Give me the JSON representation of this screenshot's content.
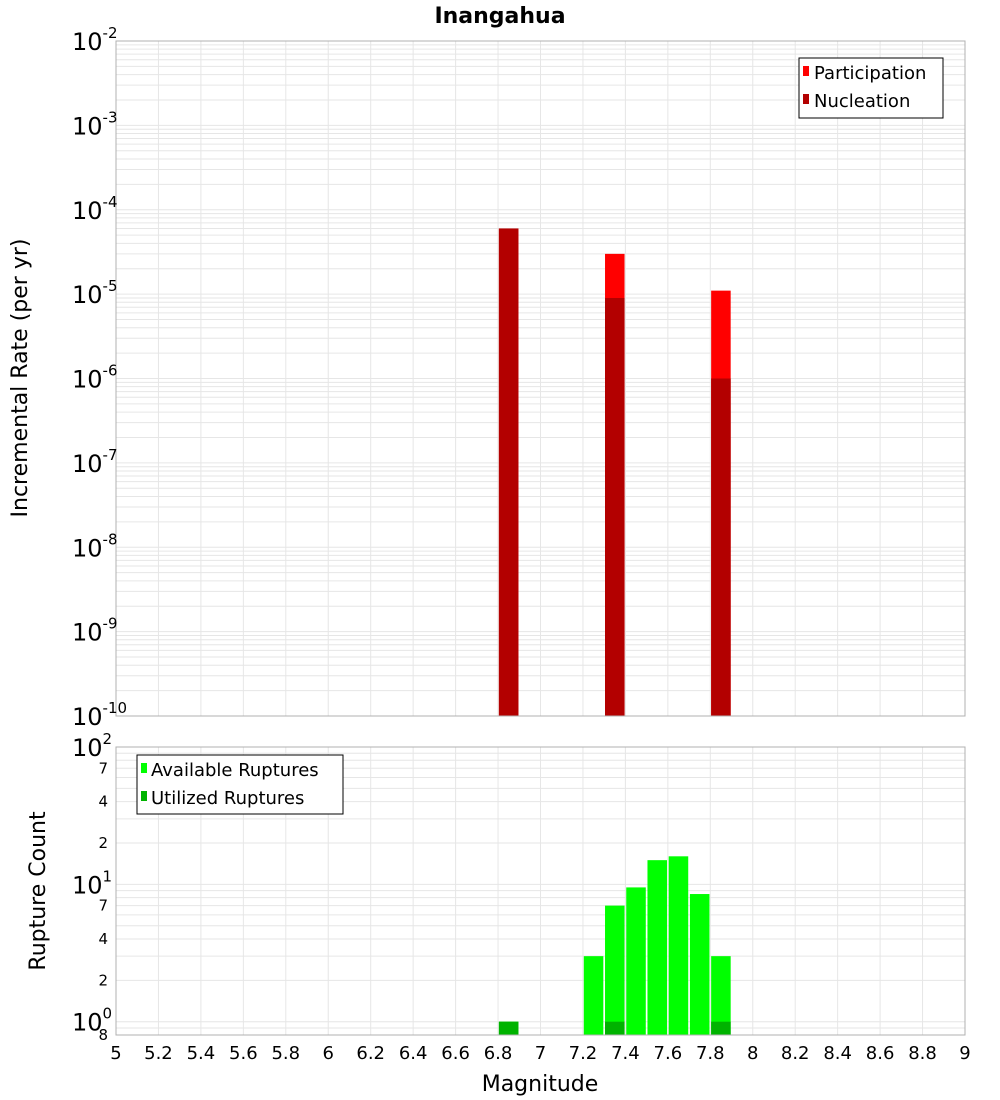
{
  "title": "Inangahua",
  "colors": {
    "participation": "#ff0000",
    "nucleation": "#b30000",
    "available": "#00ff00",
    "utilized": "#00b300",
    "grid": "#e6e6e6",
    "frame": "#b0b0b0"
  },
  "chart_data": [
    {
      "type": "bar",
      "ylabel": "Incremental Rate (per yr)",
      "yscale": "log",
      "ylim": [
        1e-10,
        0.01
      ],
      "ytick_labels": [
        {
          "base": "10",
          "exp": "-2"
        },
        {
          "base": "10",
          "exp": "-3"
        },
        {
          "base": "10",
          "exp": "-4"
        },
        {
          "base": "10",
          "exp": "-5"
        },
        {
          "base": "10",
          "exp": "-6"
        },
        {
          "base": "10",
          "exp": "-7"
        },
        {
          "base": "10",
          "exp": "-8"
        },
        {
          "base": "10",
          "exp": "-9"
        },
        {
          "base": "10",
          "exp": "-10"
        }
      ],
      "grid": true,
      "legend": "top-right",
      "series": [
        {
          "name": "Participation",
          "x": [
            6.85,
            7.35,
            7.85
          ],
          "values": [
            6e-05,
            3e-05,
            1.1e-05
          ]
        },
        {
          "name": "Nucleation",
          "x": [
            6.85,
            7.35,
            7.85
          ],
          "values": [
            6e-05,
            9e-06,
            1e-06
          ]
        }
      ]
    },
    {
      "type": "bar",
      "ylabel": "Rupture Count",
      "xlabel": "Magnitude",
      "yscale": "log",
      "ylim": [
        0.8,
        100
      ],
      "ytick_labels": [
        {
          "base": "10",
          "exp": "2"
        },
        {
          "minor": "7"
        },
        {
          "minor": "4"
        },
        {
          "minor": "2"
        },
        {
          "base": "10",
          "exp": "1"
        },
        {
          "minor": "7"
        },
        {
          "minor": "4"
        },
        {
          "minor": "2"
        },
        {
          "base": "10",
          "exp": "0"
        },
        {
          "minor": "8"
        }
      ],
      "xlim": [
        5,
        9
      ],
      "xticks": [
        "5",
        "5.2",
        "5.4",
        "5.6",
        "5.8",
        "6",
        "6.2",
        "6.4",
        "6.6",
        "6.8",
        "7",
        "7.2",
        "7.4",
        "7.6",
        "7.8",
        "8",
        "8.2",
        "8.4",
        "8.6",
        "8.8",
        "9"
      ],
      "grid": true,
      "legend": "top-left",
      "series": [
        {
          "name": "Available Ruptures",
          "x": [
            6.85,
            7.25,
            7.35,
            7.45,
            7.55,
            7.65,
            7.75,
            7.85
          ],
          "values": [
            1,
            3,
            7,
            9.5,
            15,
            16,
            8.5,
            3
          ]
        },
        {
          "name": "Utilized Ruptures",
          "x": [
            6.85,
            7.35,
            7.85
          ],
          "values": [
            1,
            1,
            1
          ]
        }
      ]
    }
  ]
}
